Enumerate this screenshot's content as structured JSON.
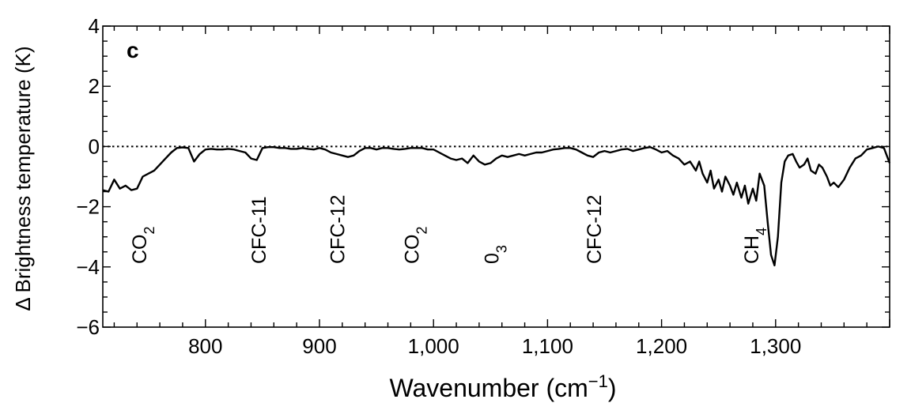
{
  "chart_data": {
    "type": "line",
    "panel_label": "c",
    "xlabel": "Wavenumber (cm−1)",
    "xlabel_parts": {
      "main": "Wavenumber (cm",
      "sup": "−1",
      "close": ")"
    },
    "ylabel": "Δ Brightness temperature (K)",
    "xlim": [
      710,
      1400
    ],
    "ylim": [
      -6,
      4
    ],
    "xticks": [
      800,
      900,
      1000,
      1100,
      1200,
      1300
    ],
    "xtick_labels": [
      "800",
      "900",
      "1,000",
      "1,100",
      "1,200",
      "1,300"
    ],
    "yticks": [
      4,
      2,
      0,
      -2,
      -4,
      -6
    ],
    "ytick_labels": [
      "4",
      "2",
      "0",
      "−2",
      "−4",
      "−6"
    ],
    "zero_line": {
      "y": 0,
      "style": "dotted"
    },
    "annotations": [
      {
        "x": 748,
        "base": "CO",
        "sub": "2"
      },
      {
        "x": 853,
        "base": "CFC-11",
        "sub": ""
      },
      {
        "x": 922,
        "base": "CFC-12",
        "sub": ""
      },
      {
        "x": 987,
        "base": "CO",
        "sub": "2"
      },
      {
        "x": 1057,
        "base": "0",
        "sub": "3"
      },
      {
        "x": 1147,
        "base": "CFC-12",
        "sub": ""
      },
      {
        "x": 1285,
        "base": "CH",
        "sub": "4"
      }
    ],
    "series": [
      {
        "x": [
          710,
          715,
          720,
          725,
          730,
          735,
          740,
          745,
          750,
          755,
          760,
          765,
          770,
          775,
          780,
          785,
          790,
          795,
          800,
          805,
          810,
          815,
          820,
          825,
          830,
          835,
          840,
          845,
          850,
          855,
          860,
          865,
          870,
          875,
          880,
          885,
          890,
          895,
          900,
          905,
          910,
          915,
          920,
          925,
          930,
          935,
          940,
          945,
          950,
          955,
          960,
          965,
          970,
          975,
          980,
          985,
          990,
          995,
          1000,
          1005,
          1010,
          1015,
          1020,
          1025,
          1030,
          1035,
          1040,
          1045,
          1050,
          1055,
          1060,
          1065,
          1070,
          1075,
          1080,
          1085,
          1090,
          1095,
          1100,
          1105,
          1110,
          1115,
          1120,
          1125,
          1130,
          1135,
          1140,
          1145,
          1150,
          1155,
          1160,
          1165,
          1170,
          1175,
          1180,
          1185,
          1190,
          1195,
          1200,
          1205,
          1210,
          1215,
          1220,
          1225,
          1230,
          1233,
          1236,
          1240,
          1243,
          1246,
          1250,
          1253,
          1256,
          1260,
          1263,
          1266,
          1270,
          1273,
          1276,
          1280,
          1283,
          1286,
          1290,
          1293,
          1296,
          1299,
          1302,
          1305,
          1308,
          1311,
          1315,
          1318,
          1321,
          1325,
          1328,
          1331,
          1335,
          1338,
          1341,
          1345,
          1348,
          1351,
          1355,
          1360,
          1365,
          1370,
          1375,
          1380,
          1385,
          1390,
          1395,
          1400
        ],
        "values": [
          -1.45,
          -1.5,
          -1.1,
          -1.4,
          -1.3,
          -1.45,
          -1.4,
          -1.0,
          -0.9,
          -0.8,
          -0.6,
          -0.4,
          -0.2,
          -0.05,
          -0.03,
          -0.05,
          -0.5,
          -0.25,
          -0.1,
          -0.08,
          -0.1,
          -0.1,
          -0.08,
          -0.1,
          -0.15,
          -0.2,
          -0.4,
          -0.45,
          -0.05,
          -0.02,
          -0.02,
          -0.05,
          -0.05,
          -0.08,
          -0.08,
          -0.05,
          -0.08,
          -0.1,
          -0.05,
          -0.1,
          -0.2,
          -0.25,
          -0.3,
          -0.35,
          -0.3,
          -0.15,
          -0.05,
          -0.05,
          -0.1,
          -0.05,
          -0.05,
          -0.08,
          -0.1,
          -0.08,
          -0.05,
          -0.05,
          -0.05,
          -0.1,
          -0.1,
          -0.2,
          -0.3,
          -0.4,
          -0.45,
          -0.4,
          -0.55,
          -0.3,
          -0.5,
          -0.6,
          -0.55,
          -0.4,
          -0.3,
          -0.35,
          -0.3,
          -0.25,
          -0.3,
          -0.25,
          -0.2,
          -0.2,
          -0.15,
          -0.1,
          -0.08,
          -0.05,
          -0.05,
          -0.1,
          -0.2,
          -0.3,
          -0.35,
          -0.2,
          -0.15,
          -0.2,
          -0.15,
          -0.1,
          -0.08,
          -0.15,
          -0.1,
          -0.05,
          -0.02,
          -0.1,
          -0.2,
          -0.15,
          -0.3,
          -0.4,
          -0.6,
          -0.5,
          -0.8,
          -0.5,
          -0.9,
          -1.2,
          -0.8,
          -1.4,
          -1.1,
          -1.5,
          -1.0,
          -1.3,
          -1.6,
          -1.2,
          -1.7,
          -1.3,
          -1.9,
          -1.4,
          -1.8,
          -0.9,
          -1.3,
          -2.5,
          -3.6,
          -3.95,
          -3.0,
          -1.2,
          -0.5,
          -0.3,
          -0.25,
          -0.5,
          -0.7,
          -0.6,
          -0.4,
          -0.8,
          -0.9,
          -0.6,
          -0.7,
          -1.0,
          -1.3,
          -1.2,
          -1.35,
          -1.1,
          -0.7,
          -0.4,
          -0.3,
          -0.1,
          -0.05,
          0.0,
          -0.05,
          -0.55
        ]
      }
    ]
  }
}
